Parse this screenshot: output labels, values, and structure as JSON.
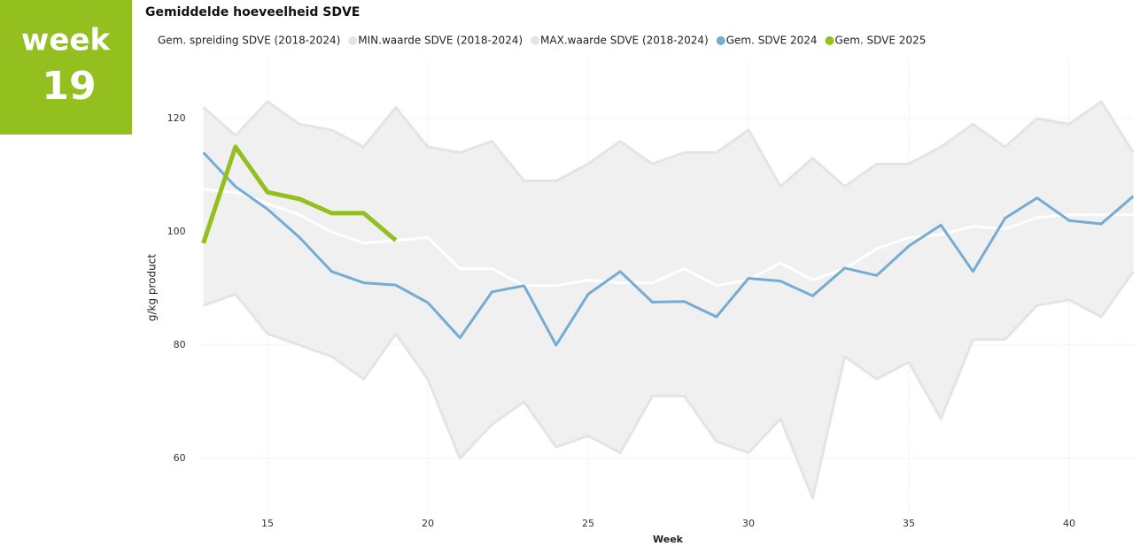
{
  "badge": {
    "label": "week",
    "number": "19"
  },
  "chart_data": {
    "type": "line",
    "title": "Gemiddelde hoeveelheid SDVE",
    "x_label": "Week",
    "y_label": "g/kg product",
    "x": [
      13,
      14,
      15,
      16,
      17,
      18,
      19,
      20,
      21,
      22,
      23,
      24,
      25,
      26,
      27,
      28,
      29,
      30,
      31,
      32,
      33,
      34,
      35,
      36,
      37,
      38,
      39,
      40,
      41,
      42
    ],
    "xlim": [
      13,
      42
    ],
    "xticks": [
      15,
      20,
      25,
      30,
      35,
      40
    ],
    "ylim": [
      50,
      130
    ],
    "yticks": [
      60,
      80,
      100,
      120
    ],
    "grid": true,
    "legend": "top",
    "series": [
      {
        "name": "Gem. spreiding SDVE (2018-2024)",
        "color": "#ffffff",
        "values": [
          107.5,
          107,
          105,
          103,
          100,
          98,
          98.5,
          99,
          93.5,
          93.5,
          90.5,
          90.5,
          91.5,
          91,
          91,
          93.5,
          90.5,
          91.5,
          94.5,
          91.5,
          93.5,
          97,
          99,
          99.5,
          101,
          100.5,
          102.5,
          103,
          103,
          103
        ]
      },
      {
        "name": "MIN.waarde SDVE (2018-2024)",
        "color": "#e4e4e4",
        "values": [
          87,
          89,
          82,
          80,
          78,
          74,
          82,
          74,
          60,
          66,
          70,
          62,
          64,
          61,
          71,
          71,
          63,
          61,
          67,
          53,
          78,
          74,
          77,
          67,
          81,
          81,
          87,
          88,
          85,
          93
        ]
      },
      {
        "name": "MAX.waarde SDVE (2018-2024)",
        "color": "#e4e4e4",
        "values": [
          122,
          117,
          123,
          119,
          118,
          115,
          122,
          115,
          114,
          116,
          109,
          109,
          112,
          116,
          112,
          114,
          114,
          118,
          108,
          113,
          108,
          112,
          112,
          115,
          119,
          115,
          120,
          119,
          123,
          114
        ]
      },
      {
        "name": "Gem. SDVE 2024",
        "color": "#75acd3",
        "values": [
          114,
          108,
          104,
          99,
          93,
          91,
          90.6,
          87.5,
          81.3,
          89.4,
          90.5,
          80,
          89,
          93,
          87.6,
          87.7,
          85,
          91.8,
          91.3,
          88.7,
          93.6,
          92.3,
          97.5,
          101.2,
          93,
          102.4,
          106,
          102,
          101.4,
          106.3
        ]
      },
      {
        "name": "Gem. SDVE 2025",
        "color": "#93c01f",
        "values": [
          98,
          115,
          107,
          105.8,
          103.3,
          103.3,
          98.5,
          null,
          null,
          null,
          null,
          null,
          null,
          null,
          null,
          null,
          null,
          null,
          null,
          null,
          null,
          null,
          null,
          null,
          null,
          null,
          null,
          null,
          null,
          null
        ]
      }
    ]
  }
}
